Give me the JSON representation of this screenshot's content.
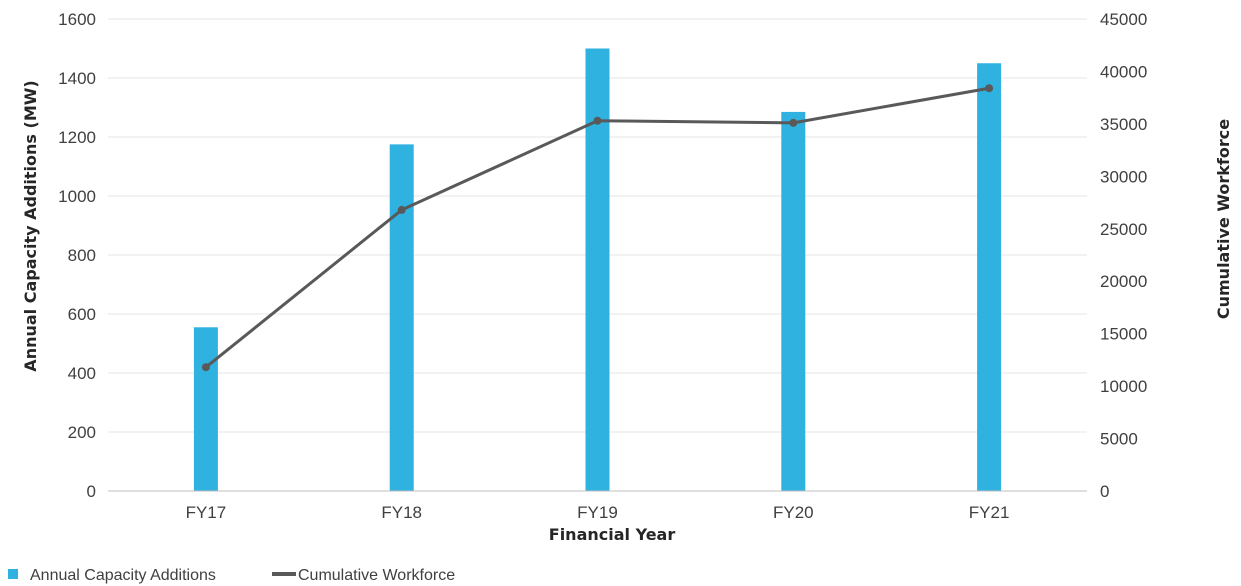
{
  "chart_data": {
    "type": "bar+line",
    "categories": [
      "FY17",
      "FY18",
      "FY19",
      "FY20",
      "FY21"
    ],
    "series": [
      {
        "name": "Annual Capacity Additions",
        "type": "bar",
        "axis": "left",
        "values": [
          555,
          1175,
          1500,
          1285,
          1450
        ],
        "color": "#2fb2e0"
      },
      {
        "name": "Cumulative Workforce",
        "type": "line",
        "axis": "right",
        "values": [
          11800,
          26800,
          35300,
          35100,
          38400
        ],
        "color": "#595959"
      }
    ],
    "xlabel": "Financial Year",
    "ylabel": "Annual Capacity Additions (MW)",
    "y2label": "Cumulative Workforce",
    "ylim": [
      0,
      1600
    ],
    "yticks": [
      "0",
      "200",
      "400",
      "600",
      "800",
      "1000",
      "1200",
      "1400",
      "1600"
    ],
    "y2lim": [
      0,
      45000
    ],
    "y2ticks": [
      "0",
      "5000",
      "10000",
      "15000",
      "20000",
      "25000",
      "30000",
      "35000",
      "40000",
      "45000"
    ],
    "grid": true,
    "legend": "bottom-left"
  }
}
